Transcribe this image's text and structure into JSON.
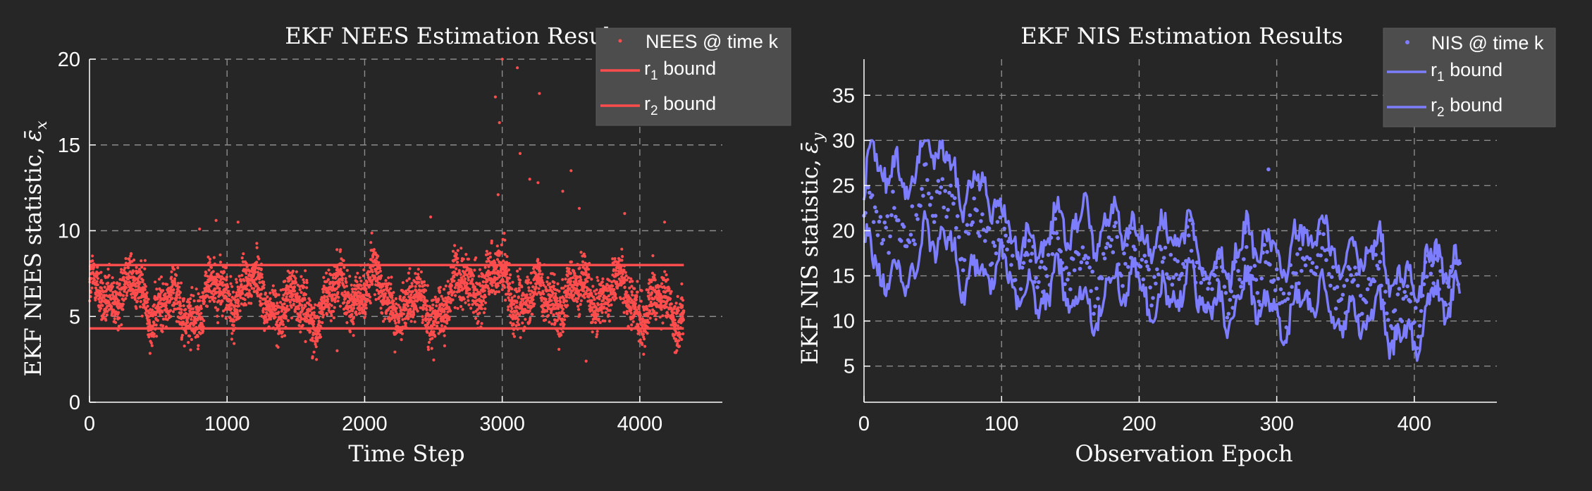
{
  "figure": {
    "background": "#262626",
    "axis_color": "#ffffff",
    "grid_color": "#8c8c8c",
    "legend_bg": "#4d4d4d"
  },
  "chart_data": [
    {
      "type": "scatter",
      "title": "EKF NEES Estimation Results",
      "xlabel": "Time Step",
      "ylabel_text": "EKF NEES statistic,",
      "ylabel_symbol": "ε̄",
      "ylabel_subscript": "x",
      "xlim": [
        0,
        4600
      ],
      "ylim": [
        0,
        20
      ],
      "xticks": [
        0,
        1000,
        2000,
        3000,
        4000
      ],
      "yticks": [
        0,
        5,
        10,
        15,
        20
      ],
      "grid": true,
      "legend_position": "top-right",
      "color": "#ff4d4d",
      "n_points": 4320,
      "series": [
        {
          "name": "NEES @ time k",
          "kind": "points",
          "sample_points": [
            [
              300,
              6.5
            ],
            [
              800,
              10.1
            ],
            [
              920,
              10.6
            ],
            [
              1080,
              10.5
            ],
            [
              1800,
              3.0
            ],
            [
              2480,
              10.8
            ],
            [
              2950,
              17.8
            ],
            [
              2970,
              12.1
            ],
            [
              2980,
              16.3
            ],
            [
              3000,
              20.0
            ],
            [
              3110,
              19.5
            ],
            [
              3130,
              14.5
            ],
            [
              3200,
              13.0
            ],
            [
              3260,
              12.8
            ],
            [
              3270,
              18.0
            ],
            [
              3440,
              12.3
            ],
            [
              3500,
              13.5
            ],
            [
              3560,
              11.3
            ],
            [
              3610,
              2.4
            ],
            [
              3890,
              11.0
            ],
            [
              4180,
              10.5
            ]
          ]
        },
        {
          "name": "r",
          "name_subscript": "1",
          "name_suffix": " bound",
          "kind": "hline",
          "x": [
            0,
            4320
          ],
          "value": 4.3
        },
        {
          "name": "r",
          "name_subscript": "2",
          "name_suffix": " bound",
          "kind": "hline",
          "x": [
            0,
            4320
          ],
          "value": 8.0
        }
      ]
    },
    {
      "type": "line",
      "title": "EKF NIS Estimation Results",
      "xlabel": "Observation Epoch",
      "ylabel_text": "EKF NIS statistic,",
      "ylabel_symbol": "ε̄",
      "ylabel_subscript": "y",
      "xlim": [
        0,
        460
      ],
      "ylim": [
        1,
        39
      ],
      "xticks": [
        0,
        100,
        200,
        300,
        400
      ],
      "yticks": [
        5,
        10,
        15,
        20,
        25,
        30,
        35
      ],
      "grid": true,
      "legend_position": "top-right",
      "color": "#7d7dff",
      "x_end": 433,
      "series": [
        {
          "name": "NIS @ time k",
          "kind": "points",
          "sample_points": [
            [
              294,
              26.8
            ]
          ]
        },
        {
          "name": "r",
          "name_subscript": "1",
          "name_suffix": " bound",
          "kind": "line",
          "sample_points": [
            [
              0,
              14
            ],
            [
              15,
              12
            ],
            [
              50,
              16
            ],
            [
              85,
              13
            ],
            [
              100,
              12
            ],
            [
              150,
              10
            ],
            [
              200,
              11
            ],
            [
              250,
              10
            ],
            [
              300,
              9
            ],
            [
              350,
              9
            ],
            [
              380,
              6
            ],
            [
              400,
              7
            ],
            [
              433,
              10
            ]
          ]
        },
        {
          "name": "r",
          "name_subscript": "2",
          "name_suffix": " bound",
          "kind": "line",
          "sample_points": [
            [
              0,
              22
            ],
            [
              5,
              29
            ],
            [
              20,
              28
            ],
            [
              55,
              30
            ],
            [
              60,
              28
            ],
            [
              90,
              26
            ],
            [
              100,
              21
            ],
            [
              150,
              21
            ],
            [
              160,
              24
            ],
            [
              200,
              20
            ],
            [
              210,
              23
            ],
            [
              250,
              18
            ],
            [
              300,
              20
            ],
            [
              350,
              20
            ],
            [
              380,
              17
            ],
            [
              400,
              17
            ],
            [
              433,
              17
            ]
          ]
        }
      ]
    }
  ]
}
